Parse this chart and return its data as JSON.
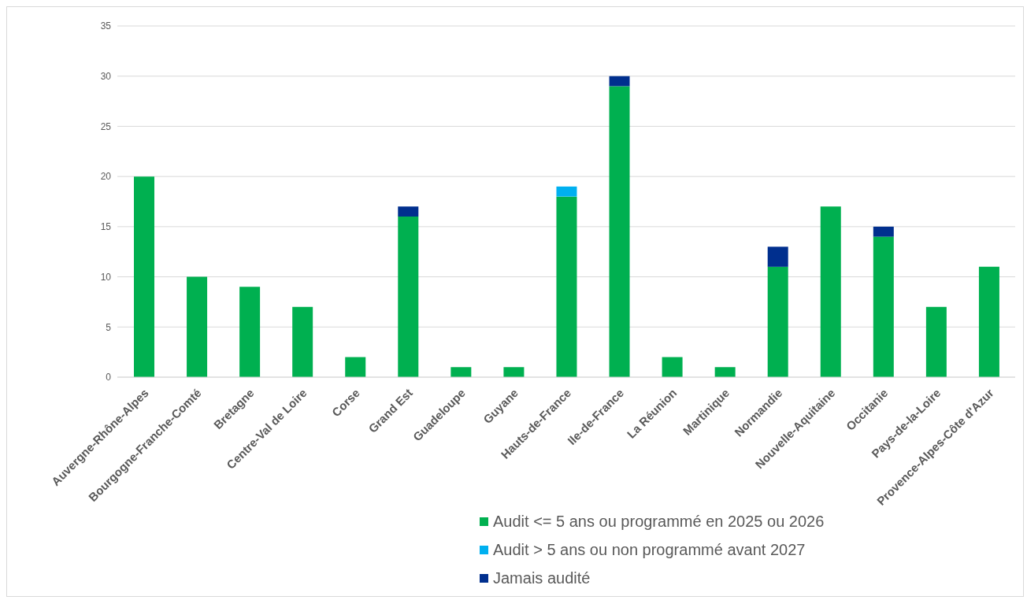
{
  "chart_data": {
    "type": "bar",
    "stacked": true,
    "categories": [
      "Auvergne-Rhône-Alpes",
      "Bourgogne-Franche-Comté",
      "Bretagne",
      "Centre-Val de Loire",
      "Corse",
      "Grand Est",
      "Guadeloupe",
      "Guyane",
      "Hauts-de-France",
      "Ile-de-France",
      "La Réunion",
      "Martinique",
      "Normandie",
      "Nouvelle-Aquitaine",
      "Occitanie",
      "Pays-de-la-Loire",
      "Provence-Alpes-Côte d'Azur"
    ],
    "series": [
      {
        "name": "Audit <= 5 ans ou programmé en 2025 ou 2026",
        "color": "#00b050",
        "values": [
          20,
          10,
          9,
          7,
          2,
          16,
          1,
          1,
          18,
          29,
          2,
          1,
          11,
          17,
          14,
          7,
          11
        ]
      },
      {
        "name": "Audit > 5 ans ou non programmé avant 2027",
        "color": "#00b0f0",
        "values": [
          0,
          0,
          0,
          0,
          0,
          0,
          0,
          0,
          1,
          0,
          0,
          0,
          0,
          0,
          0,
          0,
          0
        ]
      },
      {
        "name": "Jamais audité",
        "color": "#002f8e",
        "values": [
          0,
          0,
          0,
          0,
          0,
          1,
          0,
          0,
          0,
          1,
          0,
          0,
          2,
          0,
          1,
          0,
          0
        ]
      }
    ],
    "ylim": [
      0,
      35
    ],
    "yticks": [
      0,
      5,
      10,
      15,
      20,
      25,
      30,
      35
    ],
    "grid": "y",
    "legend": "bottom"
  }
}
